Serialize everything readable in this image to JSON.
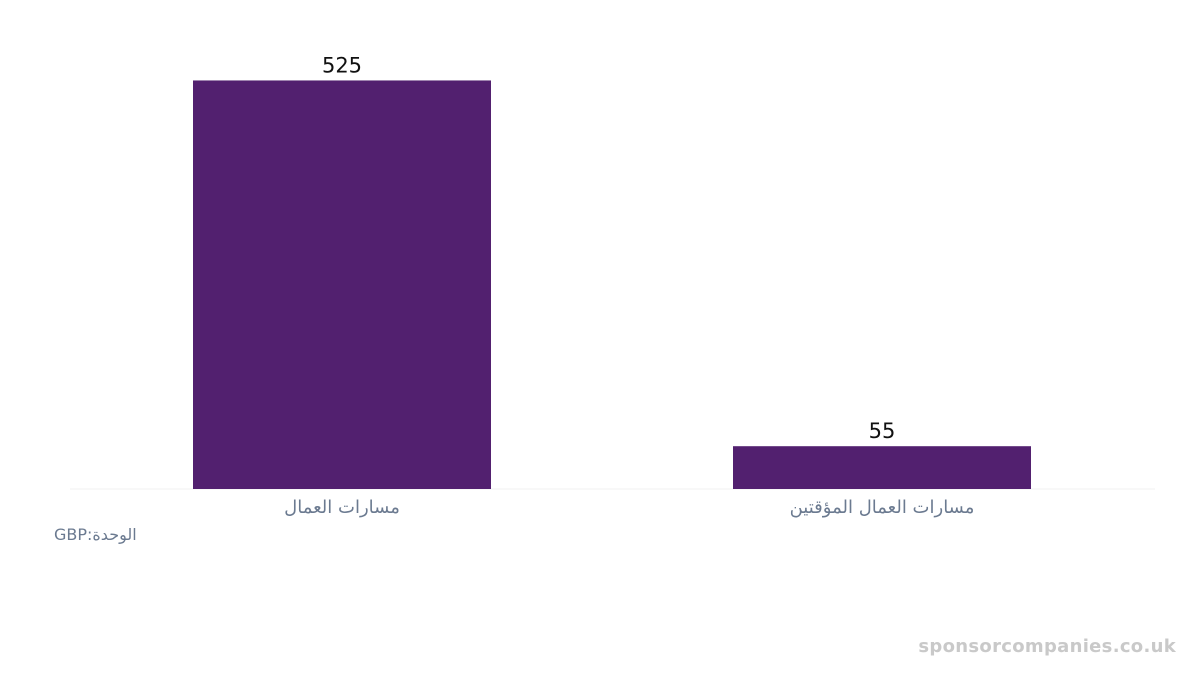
{
  "chart_data": {
    "type": "bar",
    "categories": [
      "مسارات العمال",
      "مسارات العمال المؤقتين"
    ],
    "values": [
      525,
      55
    ],
    "ylim": [
      0,
      550
    ],
    "grid": false,
    "bar_color": "#52206f"
  },
  "unit_label": "الوحدة:GBP",
  "watermark": "sponsorcompanies.co.uk"
}
